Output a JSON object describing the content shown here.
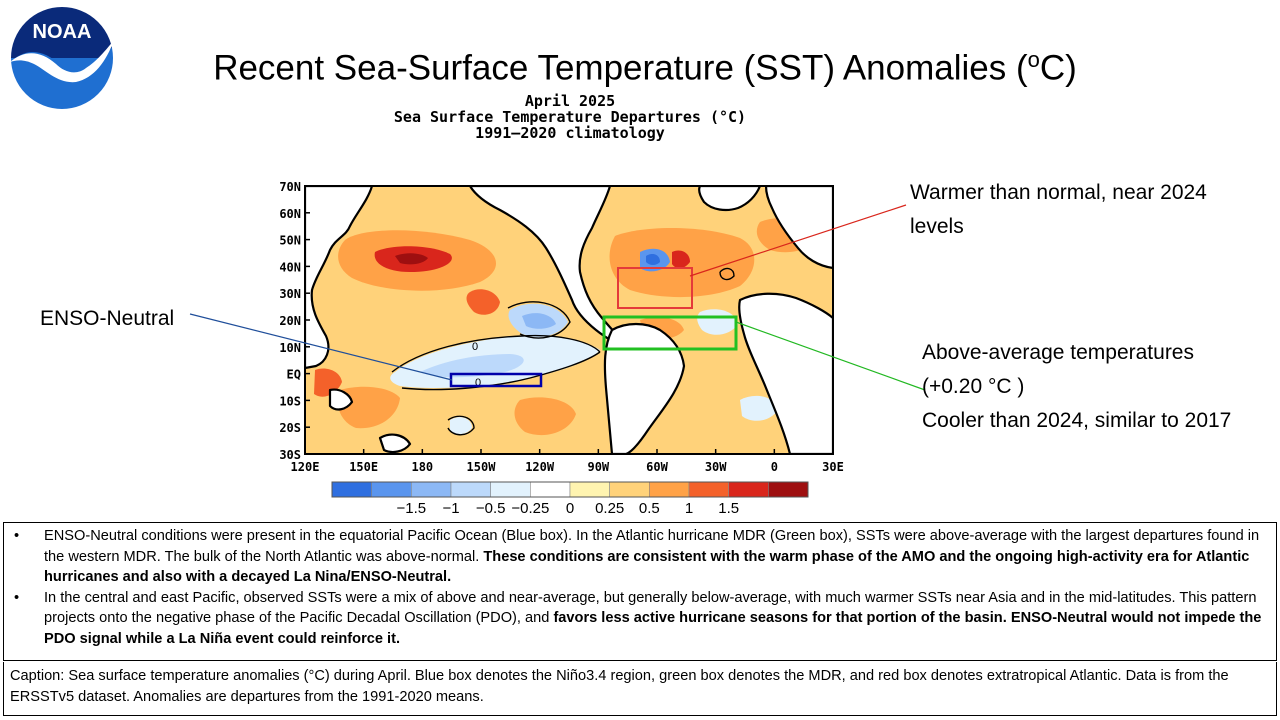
{
  "logo": {
    "text": "NOAA",
    "colors": {
      "top": "#0a2a7a",
      "bottom": "#1f6fd1",
      "wings": "#ffffff"
    }
  },
  "title": {
    "main": "Recent Sea-Surface Temperature (SST) Anomalies (",
    "sup": "o",
    "end": "C)"
  },
  "map": {
    "header_lines": [
      "April 2025",
      "Sea Surface Temperature Departures (°C)",
      "1991–2020 climatology"
    ],
    "lat_labels": [
      "70N",
      "60N",
      "50N",
      "40N",
      "30N",
      "20N",
      "10N",
      "EQ",
      "10S",
      "20S",
      "30S"
    ],
    "lon_labels": [
      "120E",
      "150E",
      "180",
      "150W",
      "120W",
      "90W",
      "60W",
      "30W",
      "0",
      "30E"
    ],
    "contour_labels": [
      "0",
      "0"
    ],
    "colorbar": {
      "colors": [
        "#2f6fe0",
        "#5a95ee",
        "#8cb8f5",
        "#bcd9fb",
        "#e2f2fd",
        "#ffffff",
        "#fff4b0",
        "#ffd27a",
        "#ffa247",
        "#f4612a",
        "#d9261c",
        "#9e0f10"
      ],
      "labels": [
        "−1.5",
        "−1",
        "−0.5",
        "−0.25",
        "0",
        "0.25",
        "0.5",
        "1",
        "1.5"
      ]
    },
    "boxes": {
      "red": "#e43a3a",
      "green": "#22c022",
      "blue": "#0000aa"
    }
  },
  "annotations": {
    "enso": "ENSO-Neutral",
    "warm_line1": "Warmer than normal, near 2024",
    "warm_line2": "levels",
    "above_line1": "Above-average  temperatures",
    "above_line2": "(+0.20 °C )",
    "above_line3": "Cooler than 2024, similar to 2017"
  },
  "bullets": [
    {
      "plain": "ENSO-Neutral conditions were present in the equatorial Pacific Ocean (Blue box). In the Atlantic hurricane MDR (Green box), SSTs were above-average with the largest departures found in the western MDR. The bulk of the North Atlantic was above-normal. ",
      "bold": "These conditions are consistent with the warm phase of the AMO and the ongoing high-activity era for Atlantic hurricanes and also with a decayed La Nina/ENSO-Neutral."
    },
    {
      "plain": "In the central and east Pacific, observed SSTs were a mix of above and near-average, but generally below-average, with much warmer SSTs near Asia and in the mid-latitudes.  This pattern projects onto the negative phase of the Pacific Decadal Oscillation (PDO), and ",
      "bold": "favors less active hurricane seasons for that portion of the basin. ENSO-Neutral would not impede the PDO signal while a La Niña event could reinforce it."
    }
  ],
  "caption": "Caption: Sea surface temperature anomalies (°C) during April. Blue box denotes the Niño3.4 region, green box denotes the MDR, and red box denotes extratropical Atlantic. Data is from the ERSSTv5 dataset. Anomalies are departures from the 1991-2020 means."
}
